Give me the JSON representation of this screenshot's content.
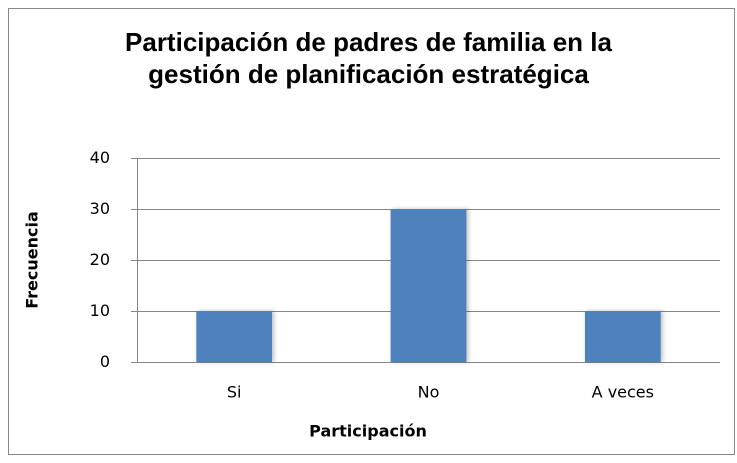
{
  "chart_data": {
    "type": "bar",
    "title": "Participación de padres de familia en la gestión de planificación estratégica",
    "x_label": "Participación",
    "y_label": "Frecuencia",
    "categories": [
      "Si",
      "No",
      "A veces"
    ],
    "values": [
      10,
      30,
      10
    ],
    "color": "#4f81bd",
    "ylim": [
      0,
      40
    ],
    "yticks": [
      0,
      10,
      20,
      30,
      40
    ],
    "grid": true
  }
}
